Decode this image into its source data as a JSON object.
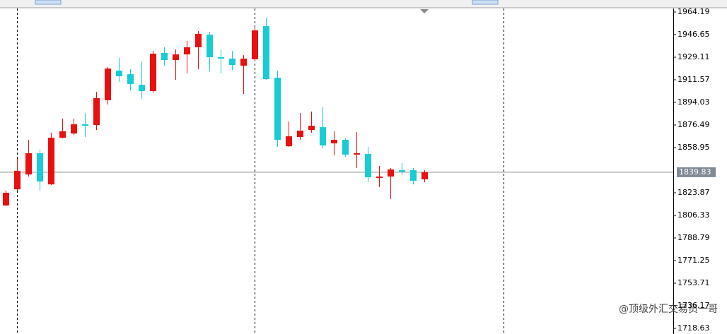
{
  "chart_data": {
    "type": "candlestick",
    "open": [
      1814.0,
      1826.6,
      1838.1,
      1854.6,
      1830.4,
      1866.6,
      1869.9,
      1877.0,
      1876.5,
      1895.7,
      1918.7,
      1915.9,
      1907.7,
      1902.8,
      1932.4,
      1926.9,
      1931.3,
      1936.8,
      1946.6,
      1929.1,
      1928.0,
      1922.5,
      1927.5,
      1953.2,
      1913.2,
      1860.0,
      1867.2,
      1872.6,
      1874.8,
      1862.2,
      1865.0,
      1853.5,
      1854.0,
      1835.4,
      1836.5,
      1841.4,
      1841.4,
      1834.3
    ],
    "high": [
      1825.5,
      1850.2,
      1865.0,
      1857.3,
      1870.5,
      1881.4,
      1881.4,
      1885.8,
      1902.2,
      1921.4,
      1928.6,
      1919.8,
      1925.8,
      1934.0,
      1936.8,
      1935.1,
      1941.7,
      1949.4,
      1948.8,
      1935.1,
      1934.0,
      1930.7,
      1952.7,
      1959.8,
      1918.7,
      1879.2,
      1885.8,
      1886.9,
      1890.2,
      1871.6,
      1866.1,
      1871.0,
      1859.5,
      1844.7,
      1843.1,
      1846.9,
      1843.1,
      1841.4
    ],
    "low": [
      1813.5,
      1825.5,
      1836.5,
      1825.5,
      1829.9,
      1866.1,
      1868.8,
      1867.2,
      1872.6,
      1892.4,
      1909.9,
      1903.3,
      1896.8,
      1901.7,
      1922.5,
      1911.6,
      1916.5,
      1919.8,
      1918.1,
      1916.5,
      1919.2,
      1900.6,
      1926.4,
      1911.6,
      1859.5,
      1859.5,
      1865.0,
      1870.5,
      1858.4,
      1852.9,
      1851.8,
      1843.1,
      1832.1,
      1828.3,
      1818.9,
      1837.6,
      1830.4,
      1832.1
    ],
    "close": [
      1823.9,
      1840.9,
      1854.6,
      1832.6,
      1866.6,
      1871.6,
      1877.0,
      1875.9,
      1897.3,
      1920.3,
      1914.3,
      1908.3,
      1902.8,
      1931.8,
      1926.9,
      1931.3,
      1936.8,
      1947.2,
      1929.1,
      1928.0,
      1923.1,
      1928.0,
      1949.9,
      1912.1,
      1865.0,
      1867.7,
      1872.1,
      1875.9,
      1860.6,
      1865.0,
      1853.5,
      1854.6,
      1835.9,
      1836.5,
      1842.0,
      1840.3,
      1833.2,
      1839.83
    ],
    "up_color": "#e81010",
    "down_color": "#18ccd4",
    "ylim": [
      1714.25,
      1966.93
    ],
    "yticks": [
      1964.19,
      1946.65,
      1929.11,
      1911.57,
      1894.03,
      1876.49,
      1858.95,
      1823.87,
      1806.33,
      1788.79,
      1771.25,
      1753.71,
      1736.17,
      1718.63
    ],
    "current_price": 1839.83,
    "watermark": "@顶级外汇交易员一哥"
  }
}
